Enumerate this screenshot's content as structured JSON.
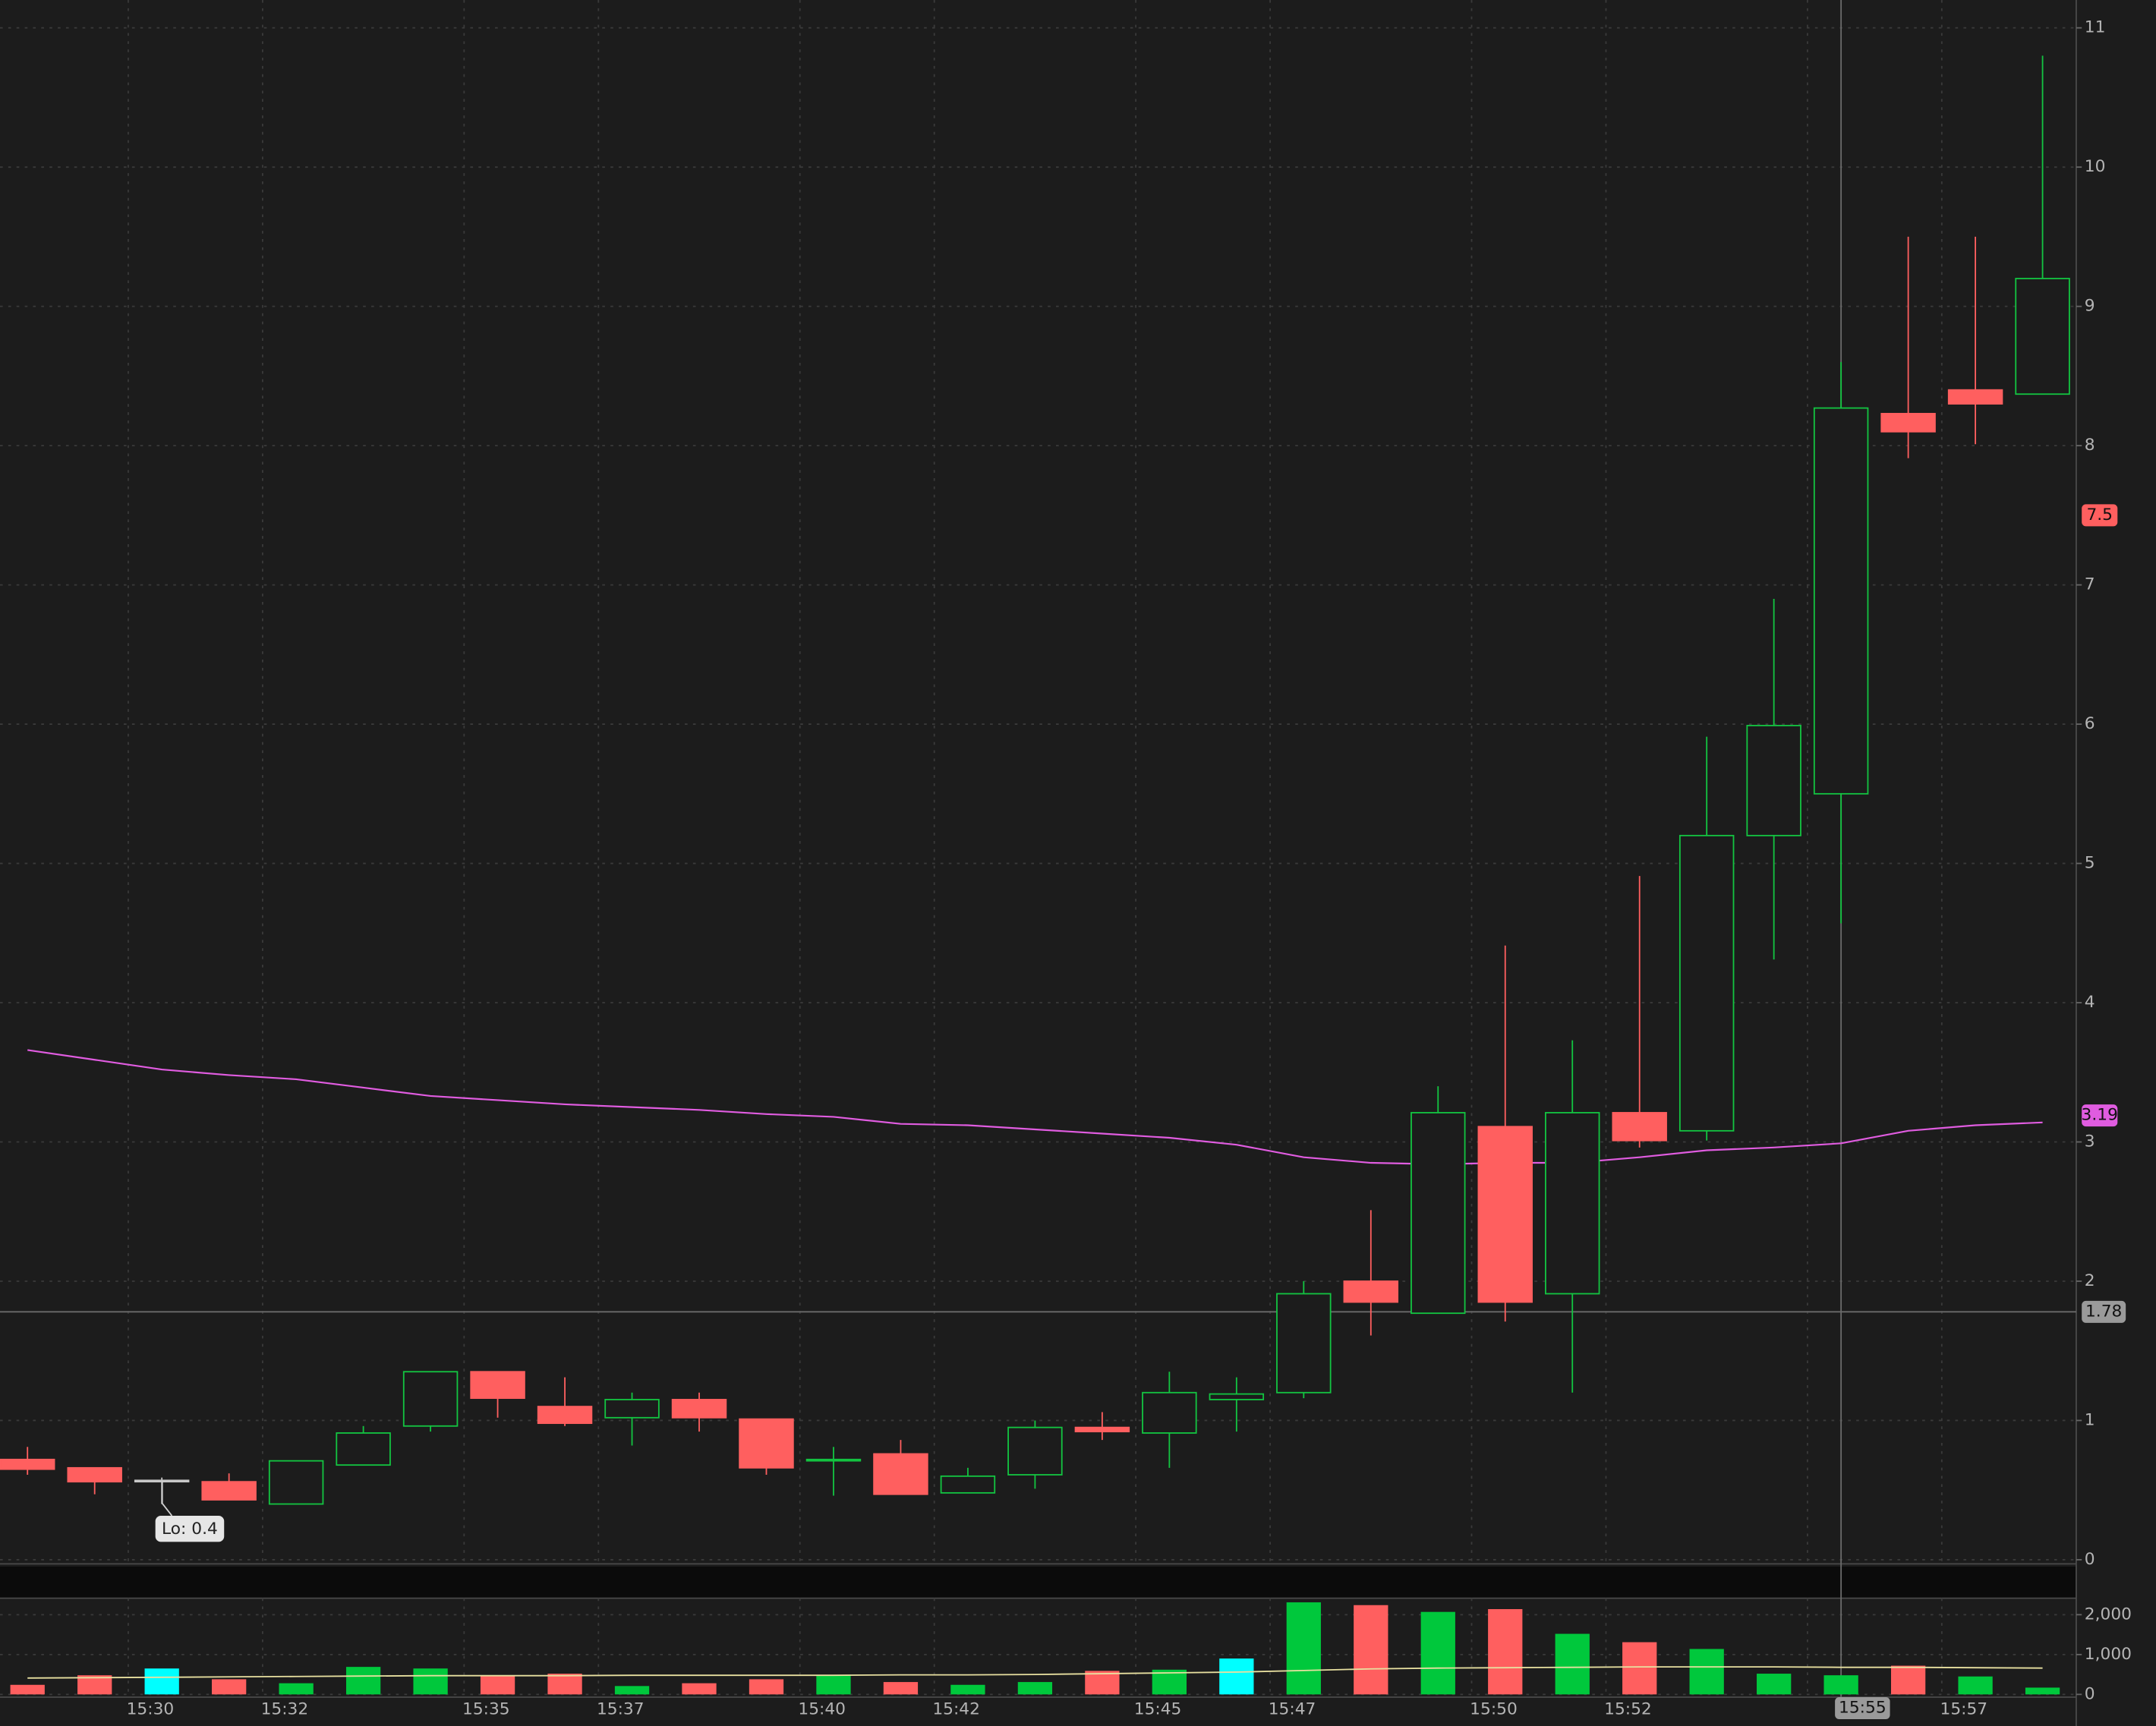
{
  "chart_data": [
    {
      "type": "candlestick",
      "categories": [
        null,
        null,
        "15:30",
        null,
        "15:32",
        null,
        null,
        "15:35",
        null,
        "15:37",
        null,
        null,
        "15:40",
        null,
        "15:42",
        null,
        null,
        "15:45",
        null,
        "15:47",
        null,
        null,
        "15:50",
        null,
        "15:52",
        null,
        null,
        "15:55",
        null,
        "15:57",
        null
      ],
      "open": [
        0.72,
        0.66,
        0.57,
        0.56,
        0.4,
        0.68,
        0.96,
        1.35,
        1.1,
        1.02,
        1.15,
        1.01,
        0.71,
        0.76,
        0.48,
        0.61,
        0.95,
        0.91,
        1.15,
        1.2,
        2.0,
        1.77,
        3.11,
        1.91,
        3.21,
        3.08,
        5.2,
        5.5,
        8.23,
        8.4,
        8.37
      ],
      "high": [
        0.81,
        0.66,
        0.59,
        0.62,
        0.71,
        0.96,
        1.35,
        1.35,
        1.31,
        1.2,
        1.2,
        1.01,
        0.81,
        0.86,
        0.66,
        1.0,
        1.06,
        1.35,
        1.31,
        2.0,
        2.51,
        3.4,
        4.41,
        3.73,
        4.91,
        5.91,
        6.9,
        8.6,
        9.5,
        9.5,
        10.8
      ],
      "low": [
        0.61,
        0.47,
        0.4,
        0.43,
        0.4,
        0.68,
        0.92,
        1.02,
        0.96,
        0.82,
        0.92,
        0.61,
        0.46,
        0.47,
        0.48,
        0.51,
        0.86,
        0.66,
        0.92,
        1.16,
        1.61,
        1.77,
        1.71,
        1.2,
        2.96,
        3.01,
        4.31,
        4.57,
        7.91,
        8.01,
        8.37
      ],
      "close": [
        0.65,
        0.56,
        0.57,
        0.43,
        0.71,
        0.91,
        1.35,
        1.16,
        0.98,
        1.15,
        1.02,
        0.66,
        0.72,
        0.47,
        0.6,
        0.95,
        0.92,
        1.2,
        1.19,
        1.91,
        1.85,
        3.21,
        1.85,
        3.21,
        3.01,
        5.2,
        5.99,
        8.27,
        8.1,
        8.3,
        9.2
      ],
      "up_color": "#13c441",
      "down_color": "#ff5f5f",
      "flat_color": "#c8c8c8",
      "overlay": {
        "color": "#e05ce0",
        "values": [
          3.66,
          3.59,
          3.52,
          3.48,
          3.45,
          3.39,
          3.33,
          3.3,
          3.27,
          3.25,
          3.23,
          3.2,
          3.18,
          3.13,
          3.12,
          3.09,
          3.06,
          3.03,
          2.98,
          2.89,
          2.85,
          2.84,
          2.85,
          2.85,
          2.89,
          2.94,
          2.96,
          2.99,
          3.08,
          3.12,
          3.14
        ]
      },
      "price_tags": [
        {
          "value": 7.5,
          "color": "#ff5f5f"
        },
        {
          "value": 3.19,
          "color": "#e05ce0"
        }
      ],
      "crosshair": {
        "x": "15:55",
        "y": 1.78
      },
      "annotations": [
        {
          "text": "Lo: 0.4"
        }
      ],
      "ylim": [
        0,
        11.2
      ],
      "yticks": [
        0,
        1,
        2,
        3,
        4,
        5,
        6,
        7,
        8,
        9,
        10,
        11
      ],
      "grid": true
    },
    {
      "type": "bar",
      "values": [
        240,
        480,
        650,
        380,
        280,
        690,
        650,
        480,
        520,
        210,
        280,
        380,
        480,
        310,
        240,
        310,
        590,
        620,
        900,
        2310,
        2240,
        2070,
        2140,
        1520,
        1310,
        1140,
        520,
        480,
        720,
        450,
        170
      ],
      "colors": [
        "#ff5f5f",
        "#ff5f5f",
        "#00ffff",
        "#ff5f5f",
        "#00c83c",
        "#00c83c",
        "#00c83c",
        "#ff5f5f",
        "#ff5f5f",
        "#00c83c",
        "#ff5f5f",
        "#ff5f5f",
        "#00c83c",
        "#ff5f5f",
        "#00c83c",
        "#00c83c",
        "#ff5f5f",
        "#00c83c",
        "#00ffff",
        "#00c83c",
        "#ff5f5f",
        "#00c83c",
        "#ff5f5f",
        "#00c83c",
        "#ff5f5f",
        "#00c83c",
        "#00c83c",
        "#00c83c",
        "#ff5f5f",
        "#00c83c",
        "#00c83c"
      ],
      "average": {
        "color": "#e8e0a0",
        "values": [
          410,
          420,
          430,
          440,
          450,
          460,
          470,
          470,
          470,
          480,
          480,
          480,
          480,
          490,
          490,
          500,
          520,
          540,
          560,
          600,
          640,
          660,
          670,
          680,
          690,
          690,
          690,
          680,
          680,
          670,
          660
        ]
      },
      "ylim": [
        0,
        2345
      ],
      "yticks": [
        0,
        {
          "value": 1000,
          "label": "1,000"
        },
        {
          "value": 2000,
          "label": "2,000"
        }
      ],
      "grid": true
    }
  ]
}
